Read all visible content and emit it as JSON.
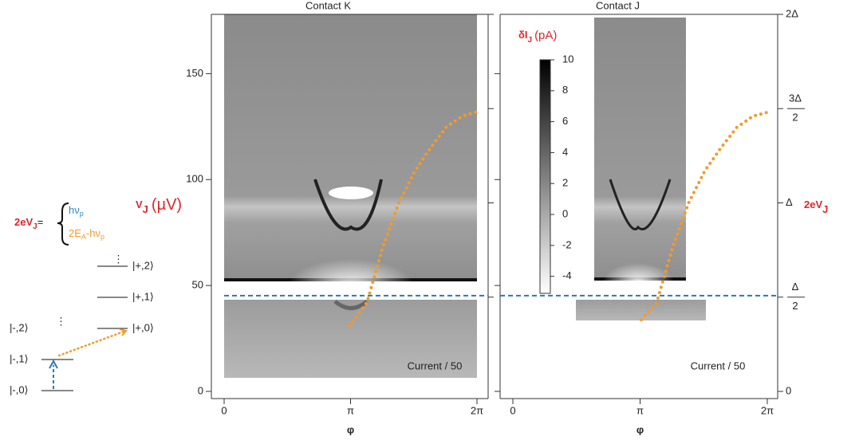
{
  "diagram": {
    "equation": {
      "lhs": "2eV",
      "lhs_sub": "J",
      "eq": "=",
      "term1": "hν",
      "term1_sub": "p",
      "term2_a": "2E",
      "term2_sub_a": "A",
      "term2_b": "-hν",
      "term2_sub_b": "p"
    },
    "levels_minus": [
      "|-,0⟩",
      "|-,1⟩",
      "|-,2⟩"
    ],
    "levels_plus": [
      "|+,0⟩",
      "|+,1⟩",
      "|+,2⟩"
    ],
    "ellipsis": "⋮"
  },
  "chart_data": [
    {
      "type": "line",
      "title": "Contact K",
      "xlabel": "φ",
      "ylabel": "V",
      "ylabel_sub": "J",
      "ylabel_unit": "(µV)",
      "xlim": [
        0,
        6.2832
      ],
      "xticks": [
        0,
        {
          "value": 3.1416,
          "label": "π"
        },
        {
          "value": 6.2832,
          "label": "2π"
        }
      ],
      "ylim": [
        0,
        178
      ],
      "yticks": [
        0,
        50,
        100,
        150
      ],
      "y2lim": [
        0,
        2
      ],
      "y2ticks": [
        0.5,
        1,
        1.5,
        2
      ],
      "show_y2tick_labels": false,
      "hline": {
        "value": 45.2,
        "color": "#2a7ab0"
      },
      "annotation": "Current / 50",
      "series": [
        {
          "color": "#f39a2a",
          "x": [
            3.11,
            3.55,
            3.94,
            4.34,
            4.74,
            5.13,
            5.53,
            5.93,
            6.28
          ],
          "values": [
            31,
            42,
            68,
            89,
            104,
            115,
            125,
            130,
            132
          ]
        }
      ]
    },
    {
      "type": "line",
      "title": "Contact J",
      "xlabel": "φ",
      "ylabel": "2eV",
      "ylabel_sub": "J",
      "xlim": [
        0,
        6.2832
      ],
      "xticks": [
        0,
        {
          "value": 3.1416,
          "label": "π"
        },
        {
          "value": 6.2832,
          "label": "2π"
        }
      ],
      "ylim": [
        0,
        178
      ],
      "yticks": [
        0,
        50,
        100,
        150
      ],
      "show_ytick_labels": false,
      "y2lim": [
        0,
        2
      ],
      "y2ticks": [
        0,
        {
          "value": 0.5,
          "label": [
            "Δ",
            "2"
          ]
        },
        {
          "value": 1,
          "label": "Δ"
        },
        {
          "value": 1.5,
          "label": [
            "3Δ",
            "2"
          ]
        },
        {
          "value": 2,
          "label": "2Δ"
        }
      ],
      "hline": {
        "value": 45.2,
        "color": "#2a7ab0"
      },
      "annotation": "Current / 50",
      "colorbar": {
        "label": "δI",
        "label_sub": "J",
        "unit": "(pA)",
        "lim": [
          -5.1,
          10
        ],
        "ticks": [
          10,
          8,
          6,
          4,
          2,
          0,
          -2,
          -4
        ]
      },
      "series": [
        {
          "color": "#f39a2a",
          "axis": "y2",
          "x": [
            3.17,
            3.55,
            3.94,
            4.34,
            4.74,
            5.13,
            5.53,
            5.93,
            6.28
          ],
          "values": [
            0.38,
            0.47,
            0.76,
            1.0,
            1.17,
            1.29,
            1.4,
            1.46,
            1.48
          ]
        }
      ]
    }
  ]
}
